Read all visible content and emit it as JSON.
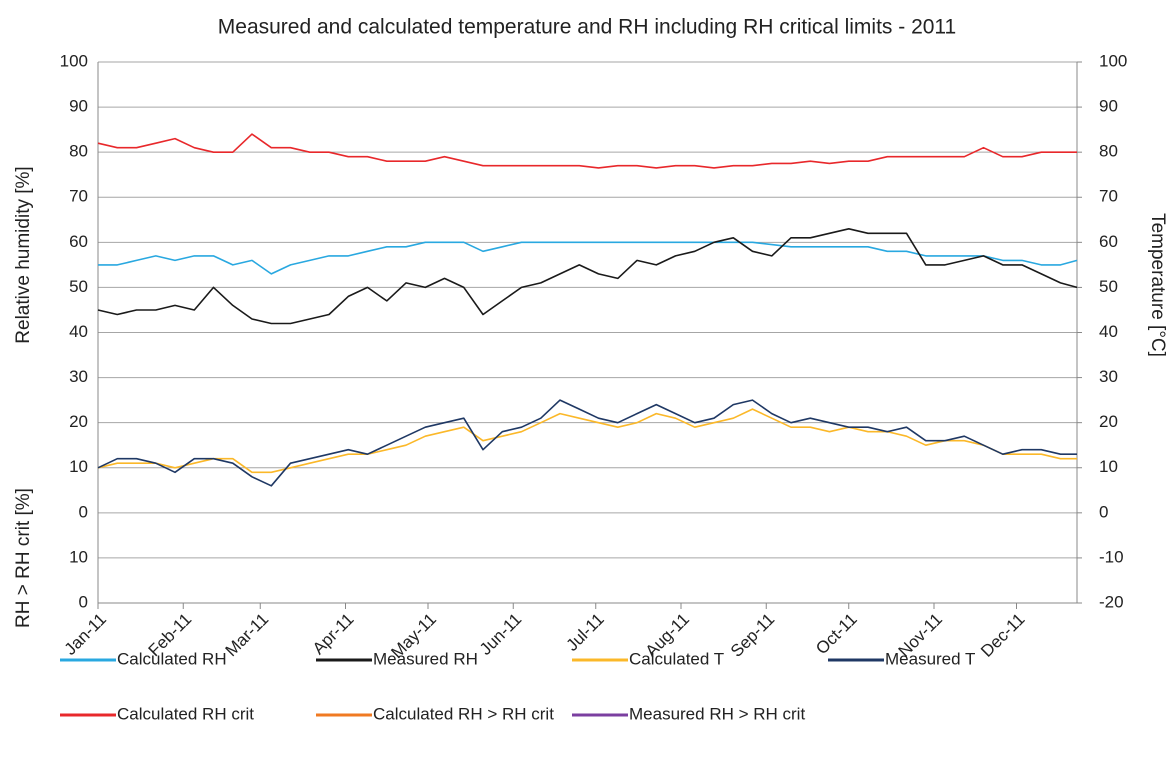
{
  "chart_data": {
    "type": "line",
    "title": "Measured and calculated temperature and RH including RH critical limits - 2011",
    "ylabel": "Relative humidity [%]",
    "ylabel_lower": "RH > RH crit [%]",
    "y2label": "Temperature [°C]",
    "grid": true,
    "legend": "bottom",
    "xlim": [
      0,
      356
    ],
    "xticks": [
      {
        "value": 0,
        "label": "Jan-11"
      },
      {
        "value": 31,
        "label": "Feb-11"
      },
      {
        "value": 59,
        "label": "Mar-11"
      },
      {
        "value": 90,
        "label": "Apr-11"
      },
      {
        "value": 120,
        "label": "May-11"
      },
      {
        "value": 151,
        "label": "Jun-11"
      },
      {
        "value": 181,
        "label": "Jul-11"
      },
      {
        "value": 212,
        "label": "Aug-11"
      },
      {
        "value": 243,
        "label": "Sep-11"
      },
      {
        "value": 273,
        "label": "Oct-11"
      },
      {
        "value": 304,
        "label": "Nov-11"
      },
      {
        "value": 334,
        "label": "Dec-11"
      }
    ],
    "ylim": [
      -20,
      100
    ],
    "yticks": [
      100,
      90,
      80,
      70,
      60,
      50,
      40,
      30,
      20,
      10,
      0,
      {
        "value": -10,
        "label": "10"
      },
      {
        "value": -20,
        "label": "0"
      }
    ],
    "y2lim": [
      -20,
      100
    ],
    "y2ticks": [
      100,
      90,
      80,
      70,
      60,
      50,
      40,
      30,
      20,
      10,
      0,
      -10,
      -20
    ],
    "x": [
      0,
      7,
      14,
      21,
      28,
      35,
      42,
      49,
      56,
      63,
      70,
      77,
      84,
      91,
      98,
      105,
      112,
      119,
      126,
      133,
      140,
      147,
      154,
      161,
      168,
      175,
      182,
      189,
      196,
      203,
      210,
      217,
      224,
      231,
      238,
      245,
      252,
      259,
      266,
      273,
      280,
      287,
      294,
      301,
      308,
      315,
      322,
      329,
      336,
      343,
      350,
      356
    ],
    "series": [
      {
        "name": "Calculated RH",
        "color": "#29a8e0",
        "values": [
          55,
          55,
          56,
          57,
          56,
          57,
          57,
          55,
          56,
          53,
          55,
          56,
          57,
          57,
          58,
          59,
          59,
          60,
          60,
          60,
          58,
          59,
          60,
          60,
          60,
          60,
          60,
          60,
          60,
          60,
          60,
          60,
          60,
          60,
          60,
          59.5,
          59,
          59,
          59,
          59,
          59,
          58,
          58,
          57,
          57,
          57,
          57,
          56,
          56,
          55,
          55,
          56
        ]
      },
      {
        "name": "Measured RH",
        "color": "#1a1a1a",
        "values": [
          45,
          44,
          45,
          45,
          46,
          45,
          50,
          46,
          43,
          42,
          42,
          43,
          44,
          48,
          50,
          47,
          51,
          50,
          52,
          50,
          44,
          47,
          50,
          51,
          53,
          55,
          53,
          52,
          56,
          55,
          57,
          58,
          60,
          61,
          58,
          57,
          61,
          61,
          62,
          63,
          62,
          62,
          62,
          55,
          55,
          56,
          57,
          55,
          55,
          53,
          51,
          50
        ]
      },
      {
        "name": "Calculated T",
        "color": "#fbb829",
        "axis": "y2",
        "values": [
          10,
          11,
          11,
          11,
          10,
          11,
          12,
          12,
          9,
          9,
          10,
          11,
          12,
          13,
          13,
          14,
          15,
          17,
          18,
          19,
          16,
          17,
          18,
          20,
          22,
          21,
          20,
          19,
          20,
          22,
          21,
          19,
          20,
          21,
          23,
          21,
          19,
          19,
          18,
          19,
          18,
          18,
          17,
          15,
          16,
          16,
          15,
          13,
          13,
          13,
          12,
          12
        ]
      },
      {
        "name": "Measured T",
        "color": "#1f3864",
        "axis": "y2",
        "values": [
          10,
          12,
          12,
          11,
          9,
          12,
          12,
          11,
          8,
          6,
          11,
          12,
          13,
          14,
          13,
          15,
          17,
          19,
          20,
          21,
          14,
          18,
          19,
          21,
          25,
          23,
          21,
          20,
          22,
          24,
          22,
          20,
          21,
          24,
          25,
          22,
          20,
          21,
          20,
          19,
          19,
          18,
          19,
          16,
          16,
          17,
          15,
          13,
          14,
          14,
          13,
          13
        ]
      },
      {
        "name": "Calculated RH crit",
        "color": "#e8282b",
        "values": [
          82,
          81,
          81,
          82,
          83,
          81,
          80,
          80,
          84,
          81,
          81,
          80,
          80,
          79,
          79,
          78,
          78,
          78,
          79,
          78,
          77,
          77,
          77,
          77,
          77,
          77,
          76.5,
          77,
          77,
          76.5,
          77,
          77,
          76.5,
          77,
          77,
          77.5,
          77.5,
          78,
          77.5,
          78,
          78,
          79,
          79,
          79,
          79,
          79,
          81,
          79,
          79,
          80,
          80,
          80
        ]
      },
      {
        "name": "Calculated RH > RH crit",
        "color": "#f07a22",
        "values": [
          null,
          null,
          null,
          null,
          null,
          null,
          null,
          null,
          null,
          null,
          null,
          null,
          null,
          null,
          null,
          null,
          null,
          null,
          null,
          null,
          null,
          null,
          null,
          null,
          null,
          null,
          null,
          null,
          null,
          null,
          null,
          null,
          null,
          null,
          null,
          null,
          null,
          null,
          null,
          null,
          null,
          null,
          null,
          null,
          null,
          null,
          null,
          null,
          null,
          null,
          null,
          null
        ]
      },
      {
        "name": "Measured RH > RH crit",
        "color": "#7b3fa0",
        "values": [
          null,
          null,
          null,
          null,
          null,
          null,
          null,
          null,
          null,
          null,
          null,
          null,
          null,
          null,
          null,
          null,
          null,
          null,
          null,
          null,
          null,
          null,
          null,
          null,
          null,
          null,
          null,
          null,
          null,
          null,
          null,
          null,
          null,
          null,
          null,
          null,
          null,
          null,
          null,
          null,
          null,
          null,
          null,
          null,
          null,
          null,
          null,
          null,
          null,
          null,
          null,
          null
        ]
      }
    ]
  }
}
